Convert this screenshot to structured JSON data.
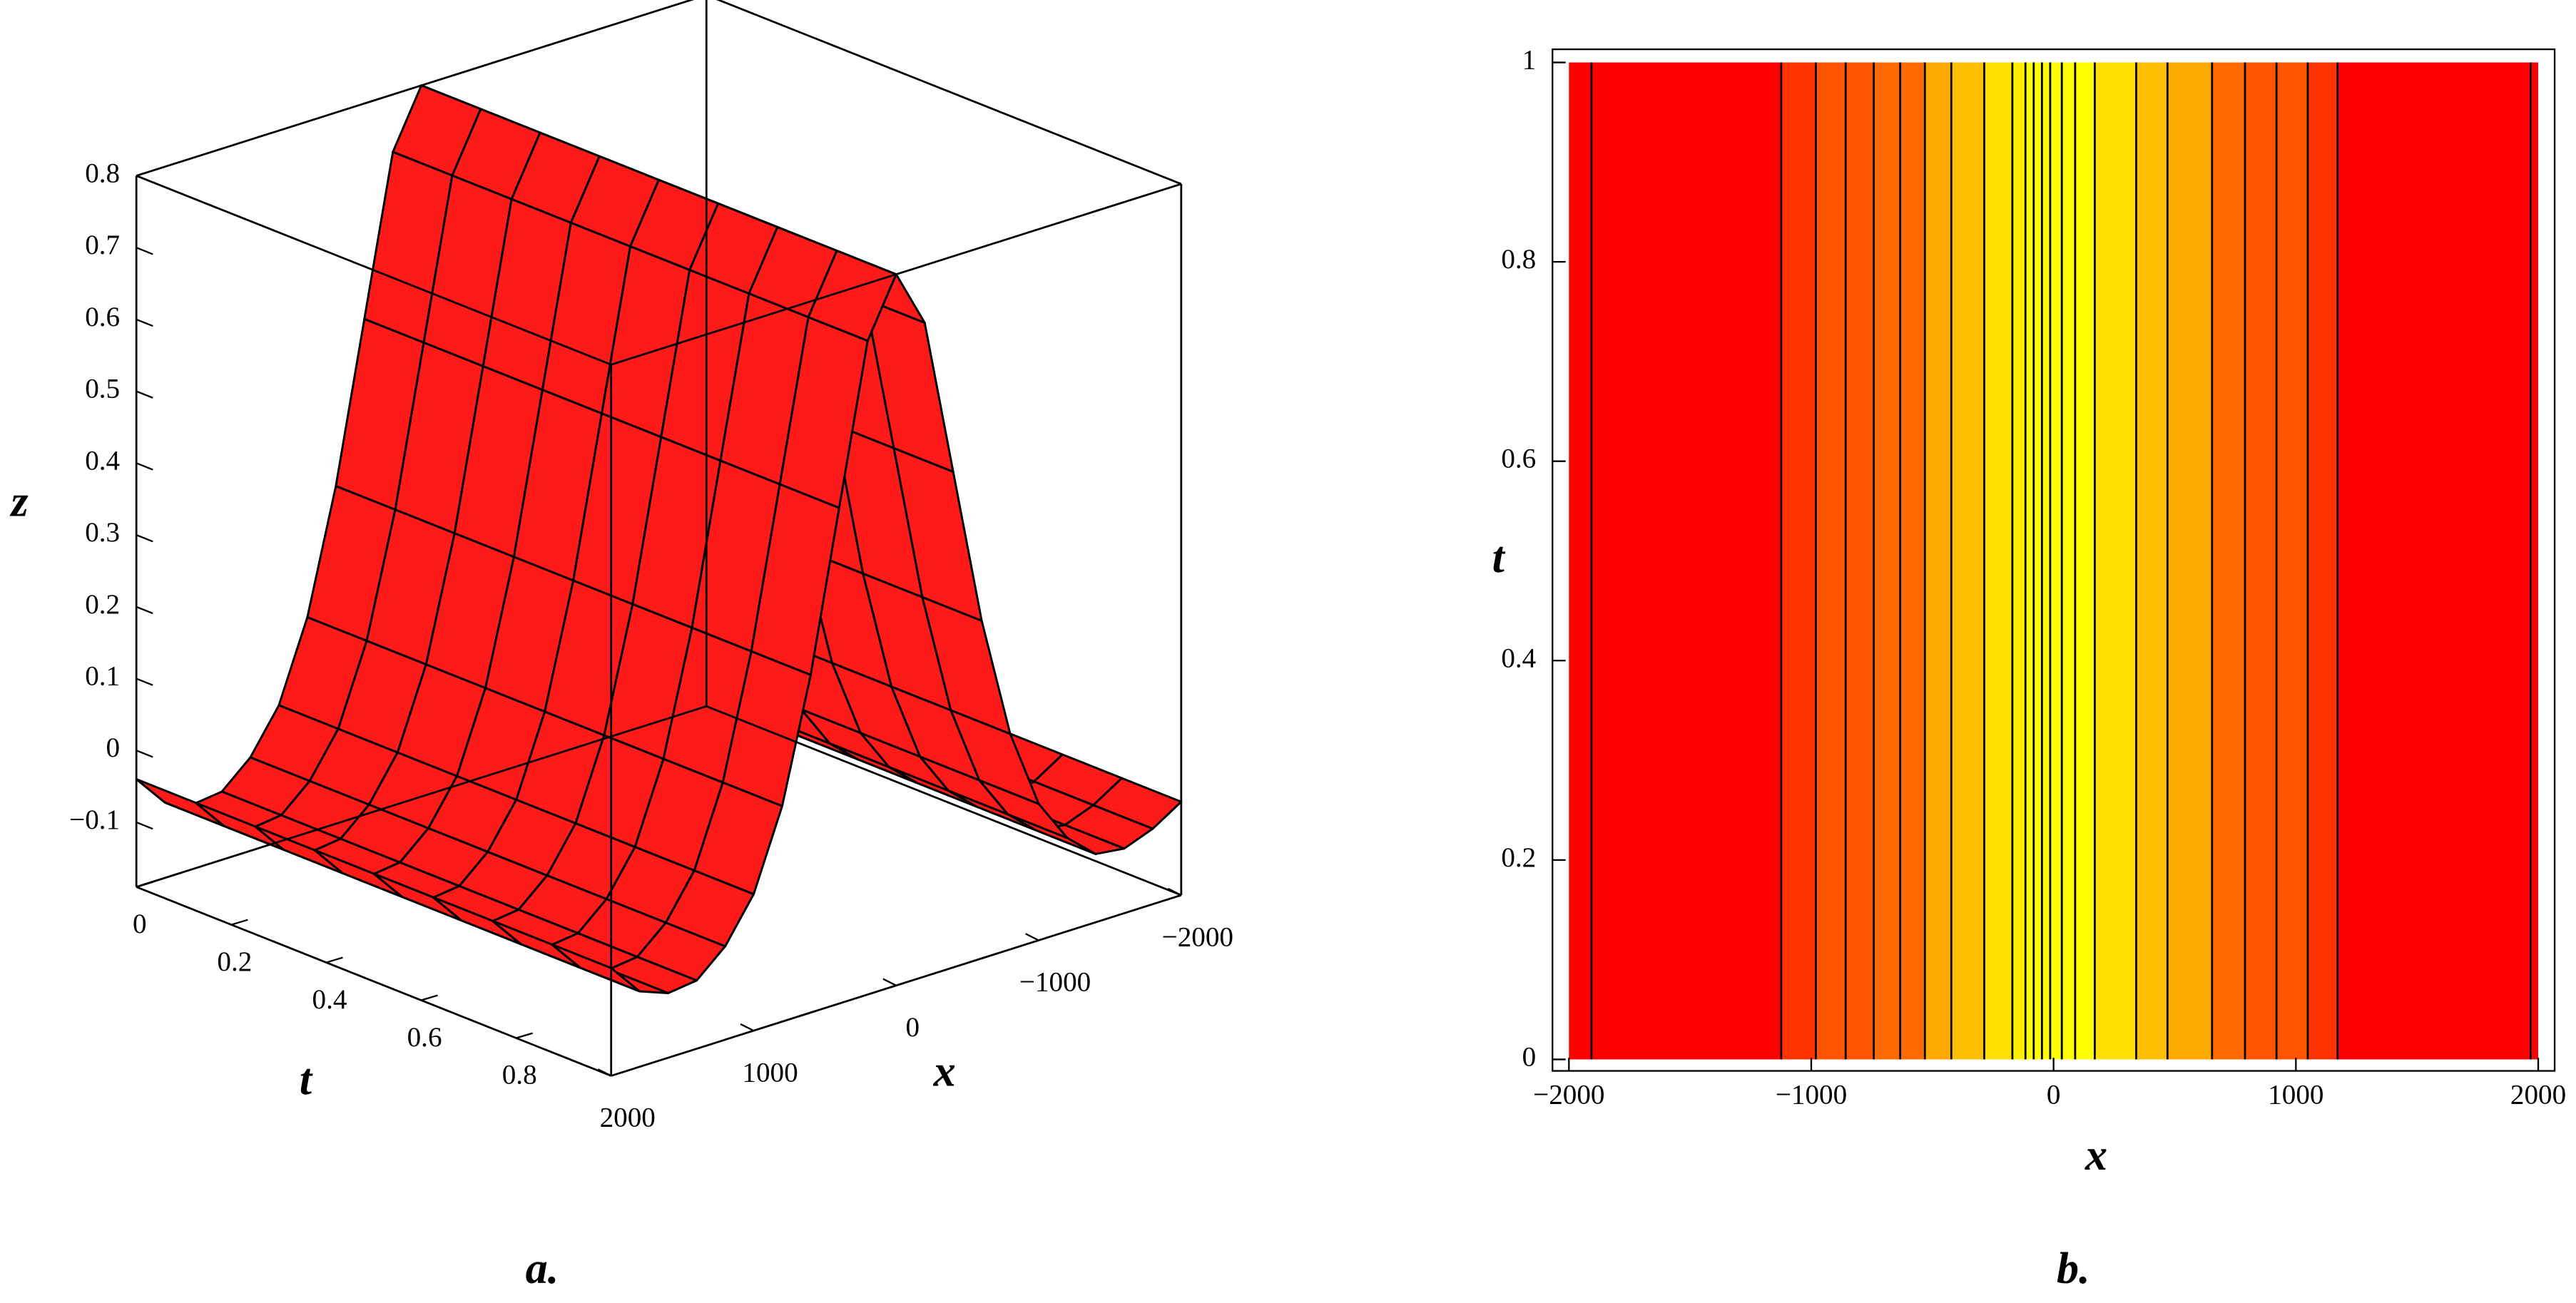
{
  "chart_data": [
    {
      "type": "surface",
      "color": "#ff1a1a",
      "x": [
        -2000,
        -1800,
        -1600,
        -1400,
        -1200,
        -1000,
        -800,
        -600,
        -400,
        -200,
        0,
        200,
        400,
        600,
        800,
        1000,
        1200,
        1400,
        1600,
        1800,
        2000
      ],
      "z": [
        -0.06,
        -0.085,
        -0.1,
        -0.095,
        -0.06,
        0.0,
        0.11,
        0.28,
        0.5,
        0.72,
        0.8,
        0.72,
        0.5,
        0.28,
        0.11,
        0.0,
        -0.06,
        -0.095,
        -0.1,
        -0.085,
        -0.04
      ],
      "xlim": [
        -2000,
        2000
      ],
      "xticks": [
        {
          "value": 2000,
          "label": "2000"
        },
        {
          "value": 1000,
          "label": "1000"
        },
        0,
        {
          "value": -1000,
          "label": "−1000"
        },
        {
          "value": -2000,
          "label": "−2000"
        }
      ],
      "tlim": [
        0,
        1
      ],
      "tticks": [
        0,
        0.2,
        0.4,
        0.6,
        0.8
      ],
      "zlim": [
        -0.19,
        0.8
      ],
      "zticks": [
        {
          "value": -0.1,
          "label": "−0.1"
        },
        0,
        0.1,
        0.2,
        0.3,
        0.4,
        0.5,
        0.6,
        0.7,
        0.8
      ],
      "xlabel": "x",
      "tlabel": "t",
      "zlabel": "z",
      "caption": "a."
    },
    {
      "type": "contour",
      "contour_x": [
        -1907,
        -1124,
        -981,
        -858,
        -742,
        -633,
        -531,
        -422,
        -286,
        -170,
        -116,
        -82,
        -48,
        -14,
        34,
        89,
        170,
        341,
        470,
        654,
        790,
        920,
        1049,
        1172,
        1969
      ],
      "band_colors": [
        "#ff0000",
        "#ff0000",
        "#ff3300",
        "#ff5500",
        "#ff5500",
        "#ff6a00",
        "#ff6a00",
        "#ffaa00",
        "#ffbf00",
        "#ffe000",
        "#ffee00",
        "#ffff00",
        "#ffff00",
        "#ffff00",
        "#ffff00",
        "#ffff00",
        "#ffff00",
        "#ffe000",
        "#ffbf00",
        "#ffaa00",
        "#ff6a00",
        "#ff5500",
        "#ff5500",
        "#ff3300",
        "#ff0000",
        "#ff0000"
      ],
      "line_color": "#000000",
      "xlim": [
        -2000,
        2000
      ],
      "xticks": [
        {
          "value": -2000,
          "label": "−2000"
        },
        {
          "value": -1000,
          "label": "−1000"
        },
        0,
        1000,
        2000
      ],
      "ylim": [
        0,
        1
      ],
      "yticks": [
        0,
        0.2,
        0.4,
        0.6,
        0.8,
        1
      ],
      "xlabel": "x",
      "ylabel": "t",
      "caption": "b."
    }
  ]
}
